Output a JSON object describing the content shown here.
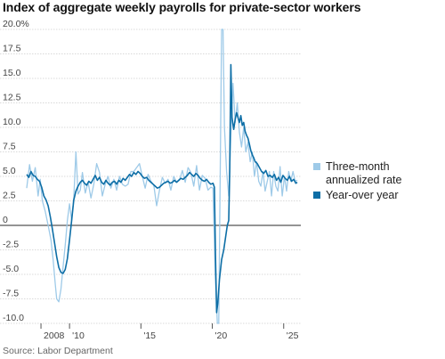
{
  "title": "Index of aggregate weekly payrolls for private-sector workers",
  "source": "Source: Labor Department",
  "chart_data": {
    "type": "line",
    "title": "Index of aggregate weekly payrolls for private-sector workers",
    "xlabel": "",
    "ylabel": "",
    "xlim": [
      2007.0,
      2026.2
    ],
    "ylim": [
      -10,
      20
    ],
    "yticks": [
      {
        "value": 20,
        "label": "20.0%"
      },
      {
        "value": 17.5,
        "label": "17.5"
      },
      {
        "value": 15,
        "label": "15.0"
      },
      {
        "value": 12.5,
        "label": "12.5"
      },
      {
        "value": 10,
        "label": "10.0"
      },
      {
        "value": 7.5,
        "label": "7.5"
      },
      {
        "value": 5,
        "label": "5.0"
      },
      {
        "value": 2.5,
        "label": "2.5"
      },
      {
        "value": 0,
        "label": "0"
      },
      {
        "value": -2.5,
        "label": "-2.5"
      },
      {
        "value": -5,
        "label": "-5.0"
      },
      {
        "value": -7.5,
        "label": "-7.5"
      },
      {
        "value": -10,
        "label": "-10.0"
      }
    ],
    "xticks": [
      {
        "value": 2008,
        "label": "2008"
      },
      {
        "value": 2010,
        "label": "'10"
      },
      {
        "value": 2015,
        "label": "'15"
      },
      {
        "value": 2020,
        "label": "'20"
      },
      {
        "value": 2025,
        "label": "'25"
      }
    ],
    "grid": "horizontal",
    "legend_position": "right",
    "series": [
      {
        "name": "Three-month annualized rate",
        "color": "#9ecae8",
        "points": [
          [
            2007.0,
            3.8
          ],
          [
            2007.2,
            6.2
          ],
          [
            2007.4,
            4.5
          ],
          [
            2007.6,
            5.9
          ],
          [
            2007.8,
            3.0
          ],
          [
            2007.95,
            4.7
          ],
          [
            2008.1,
            2.5
          ],
          [
            2008.3,
            1.4
          ],
          [
            2008.5,
            0.0
          ],
          [
            2008.7,
            -1.5
          ],
          [
            2008.85,
            -3.5
          ],
          [
            2009.0,
            -6.0
          ],
          [
            2009.1,
            -7.5
          ],
          [
            2009.25,
            -7.8
          ],
          [
            2009.4,
            -6.5
          ],
          [
            2009.55,
            -4.2
          ],
          [
            2009.7,
            -2.0
          ],
          [
            2009.85,
            0.5
          ],
          [
            2010.0,
            2.2
          ],
          [
            2010.15,
            0.5
          ],
          [
            2010.3,
            2.8
          ],
          [
            2010.45,
            7.5
          ],
          [
            2010.6,
            3.2
          ],
          [
            2010.75,
            3.6
          ],
          [
            2010.9,
            5.4
          ],
          [
            2011.1,
            3.3
          ],
          [
            2011.3,
            4.4
          ],
          [
            2011.5,
            2.8
          ],
          [
            2011.7,
            4.2
          ],
          [
            2011.9,
            6.3
          ],
          [
            2012.1,
            5.4
          ],
          [
            2012.3,
            3.0
          ],
          [
            2012.5,
            4.2
          ],
          [
            2012.7,
            5.0
          ],
          [
            2012.9,
            3.8
          ],
          [
            2013.1,
            4.7
          ],
          [
            2013.3,
            3.6
          ],
          [
            2013.5,
            5.0
          ],
          [
            2013.7,
            4.2
          ],
          [
            2013.9,
            4.0
          ],
          [
            2014.1,
            4.2
          ],
          [
            2014.3,
            5.5
          ],
          [
            2014.5,
            5.5
          ],
          [
            2014.7,
            5.9
          ],
          [
            2014.9,
            6.3
          ],
          [
            2015.1,
            5.0
          ],
          [
            2015.3,
            3.8
          ],
          [
            2015.5,
            5.2
          ],
          [
            2015.7,
            4.5
          ],
          [
            2015.9,
            4.1
          ],
          [
            2016.1,
            2.0
          ],
          [
            2016.3,
            3.6
          ],
          [
            2016.5,
            4.9
          ],
          [
            2016.7,
            4.3
          ],
          [
            2016.9,
            4.7
          ],
          [
            2017.1,
            3.6
          ],
          [
            2017.3,
            5.0
          ],
          [
            2017.5,
            4.4
          ],
          [
            2017.7,
            4.6
          ],
          [
            2017.9,
            5.6
          ],
          [
            2018.1,
            4.4
          ],
          [
            2018.3,
            5.9
          ],
          [
            2018.5,
            5.4
          ],
          [
            2018.7,
            4.0
          ],
          [
            2018.9,
            6.1
          ],
          [
            2019.1,
            3.6
          ],
          [
            2019.3,
            5.1
          ],
          [
            2019.5,
            4.8
          ],
          [
            2019.7,
            3.6
          ],
          [
            2019.9,
            3.9
          ],
          [
            2020.05,
            3.8
          ],
          [
            2020.2,
            -5.0
          ],
          [
            2020.35,
            -10.2
          ],
          [
            2020.45,
            -10.2
          ],
          [
            2020.55,
            5.0
          ],
          [
            2020.65,
            20.5
          ],
          [
            2020.75,
            20.5
          ],
          [
            2020.85,
            10.0
          ],
          [
            2021.0,
            5.5
          ],
          [
            2021.15,
            3.0
          ],
          [
            2021.3,
            9.0
          ],
          [
            2021.45,
            14.5
          ],
          [
            2021.6,
            10.5
          ],
          [
            2021.75,
            12.5
          ],
          [
            2021.9,
            9.5
          ],
          [
            2022.05,
            8.0
          ],
          [
            2022.2,
            10.0
          ],
          [
            2022.35,
            7.5
          ],
          [
            2022.5,
            8.5
          ],
          [
            2022.65,
            6.5
          ],
          [
            2022.8,
            7.5
          ],
          [
            2022.95,
            5.0
          ],
          [
            2023.1,
            6.5
          ],
          [
            2023.25,
            4.5
          ],
          [
            2023.4,
            4.0
          ],
          [
            2023.55,
            5.5
          ],
          [
            2023.7,
            3.5
          ],
          [
            2023.85,
            4.5
          ],
          [
            2024.0,
            5.5
          ],
          [
            2024.15,
            3.0
          ],
          [
            2024.3,
            5.5
          ],
          [
            2024.45,
            4.0
          ],
          [
            2024.6,
            3.5
          ],
          [
            2024.75,
            6.0
          ],
          [
            2024.9,
            3.0
          ],
          [
            2025.05,
            5.0
          ],
          [
            2025.2,
            3.5
          ],
          [
            2025.35,
            5.5
          ],
          [
            2025.5,
            4.5
          ],
          [
            2025.65,
            5.5
          ],
          [
            2025.8,
            4.5
          ],
          [
            2025.95,
            4.6
          ]
        ]
      },
      {
        "name": "Year-over year",
        "color": "#0d6ea6",
        "points": [
          [
            2007.0,
            5.2
          ],
          [
            2007.15,
            4.9
          ],
          [
            2007.3,
            5.5
          ],
          [
            2007.45,
            5.1
          ],
          [
            2007.6,
            5.0
          ],
          [
            2007.75,
            4.7
          ],
          [
            2007.9,
            4.5
          ],
          [
            2008.05,
            3.9
          ],
          [
            2008.2,
            3.0
          ],
          [
            2008.35,
            2.6
          ],
          [
            2008.5,
            2.0
          ],
          [
            2008.65,
            0.9
          ],
          [
            2008.8,
            -0.4
          ],
          [
            2008.95,
            -1.8
          ],
          [
            2009.1,
            -3.2
          ],
          [
            2009.25,
            -4.3
          ],
          [
            2009.4,
            -4.8
          ],
          [
            2009.55,
            -4.9
          ],
          [
            2009.7,
            -4.5
          ],
          [
            2009.85,
            -3.4
          ],
          [
            2010.0,
            -1.5
          ],
          [
            2010.15,
            0.5
          ],
          [
            2010.3,
            2.6
          ],
          [
            2010.45,
            3.5
          ],
          [
            2010.6,
            4.0
          ],
          [
            2010.75,
            4.4
          ],
          [
            2010.9,
            4.6
          ],
          [
            2011.05,
            4.3
          ],
          [
            2011.2,
            4.1
          ],
          [
            2011.35,
            4.5
          ],
          [
            2011.5,
            4.3
          ],
          [
            2011.65,
            4.7
          ],
          [
            2011.8,
            5.1
          ],
          [
            2011.95,
            4.6
          ],
          [
            2012.1,
            4.9
          ],
          [
            2012.25,
            4.4
          ],
          [
            2012.4,
            4.2
          ],
          [
            2012.55,
            4.6
          ],
          [
            2012.7,
            4.3
          ],
          [
            2012.85,
            4.1
          ],
          [
            2013.0,
            4.4
          ],
          [
            2013.15,
            4.5
          ],
          [
            2013.3,
            4.2
          ],
          [
            2013.45,
            4.6
          ],
          [
            2013.6,
            4.4
          ],
          [
            2013.75,
            4.8
          ],
          [
            2013.9,
            4.6
          ],
          [
            2014.05,
            4.9
          ],
          [
            2014.2,
            5.2
          ],
          [
            2014.35,
            5.0
          ],
          [
            2014.5,
            5.4
          ],
          [
            2014.65,
            5.2
          ],
          [
            2014.8,
            5.5
          ],
          [
            2014.95,
            5.3
          ],
          [
            2015.1,
            5.0
          ],
          [
            2015.25,
            4.8
          ],
          [
            2015.4,
            4.9
          ],
          [
            2015.55,
            4.6
          ],
          [
            2015.7,
            4.4
          ],
          [
            2015.85,
            4.2
          ],
          [
            2016.0,
            4.0
          ],
          [
            2016.15,
            3.8
          ],
          [
            2016.3,
            3.9
          ],
          [
            2016.45,
            4.1
          ],
          [
            2016.6,
            4.3
          ],
          [
            2016.75,
            4.4
          ],
          [
            2016.9,
            4.5
          ],
          [
            2017.05,
            4.3
          ],
          [
            2017.2,
            4.4
          ],
          [
            2017.35,
            4.6
          ],
          [
            2017.5,
            4.4
          ],
          [
            2017.65,
            4.6
          ],
          [
            2017.8,
            4.8
          ],
          [
            2017.95,
            4.7
          ],
          [
            2018.1,
            4.9
          ],
          [
            2018.25,
            5.1
          ],
          [
            2018.4,
            5.4
          ],
          [
            2018.55,
            5.2
          ],
          [
            2018.7,
            5.0
          ],
          [
            2018.85,
            5.3
          ],
          [
            2019.0,
            5.1
          ],
          [
            2019.15,
            4.8
          ],
          [
            2019.3,
            4.6
          ],
          [
            2019.45,
            4.5
          ],
          [
            2019.6,
            4.7
          ],
          [
            2019.75,
            4.4
          ],
          [
            2019.9,
            4.2
          ],
          [
            2020.05,
            4.3
          ],
          [
            2020.15,
            3.9
          ],
          [
            2020.22,
            -3.0
          ],
          [
            2020.3,
            -8.9
          ],
          [
            2020.38,
            -8.0
          ],
          [
            2020.5,
            -5.5
          ],
          [
            2020.65,
            -3.5
          ],
          [
            2020.8,
            -2.5
          ],
          [
            2020.95,
            -1.0
          ],
          [
            2021.05,
            0.0
          ],
          [
            2021.15,
            0.5
          ],
          [
            2021.22,
            5.5
          ],
          [
            2021.3,
            16.4
          ],
          [
            2021.38,
            11.0
          ],
          [
            2021.5,
            9.8
          ],
          [
            2021.6,
            10.8
          ],
          [
            2021.7,
            11.5
          ],
          [
            2021.8,
            11.0
          ],
          [
            2021.9,
            10.5
          ],
          [
            2022.0,
            11.2
          ],
          [
            2022.1,
            10.2
          ],
          [
            2022.2,
            10.5
          ],
          [
            2022.3,
            9.6
          ],
          [
            2022.4,
            9.2
          ],
          [
            2022.5,
            8.9
          ],
          [
            2022.6,
            8.3
          ],
          [
            2022.7,
            7.6
          ],
          [
            2022.8,
            7.2
          ],
          [
            2022.9,
            6.9
          ],
          [
            2023.0,
            6.5
          ],
          [
            2023.15,
            6.3
          ],
          [
            2023.3,
            5.9
          ],
          [
            2023.45,
            5.5
          ],
          [
            2023.6,
            5.3
          ],
          [
            2023.75,
            5.6
          ],
          [
            2023.9,
            5.0
          ],
          [
            2024.05,
            5.1
          ],
          [
            2024.2,
            4.9
          ],
          [
            2024.35,
            5.2
          ],
          [
            2024.5,
            4.6
          ],
          [
            2024.65,
            4.9
          ],
          [
            2024.8,
            4.4
          ],
          [
            2024.95,
            5.1
          ],
          [
            2025.1,
            4.8
          ],
          [
            2025.25,
            4.6
          ],
          [
            2025.4,
            5.0
          ],
          [
            2025.55,
            4.5
          ],
          [
            2025.7,
            4.7
          ],
          [
            2025.85,
            4.3
          ],
          [
            2025.95,
            4.4
          ]
        ]
      }
    ]
  }
}
